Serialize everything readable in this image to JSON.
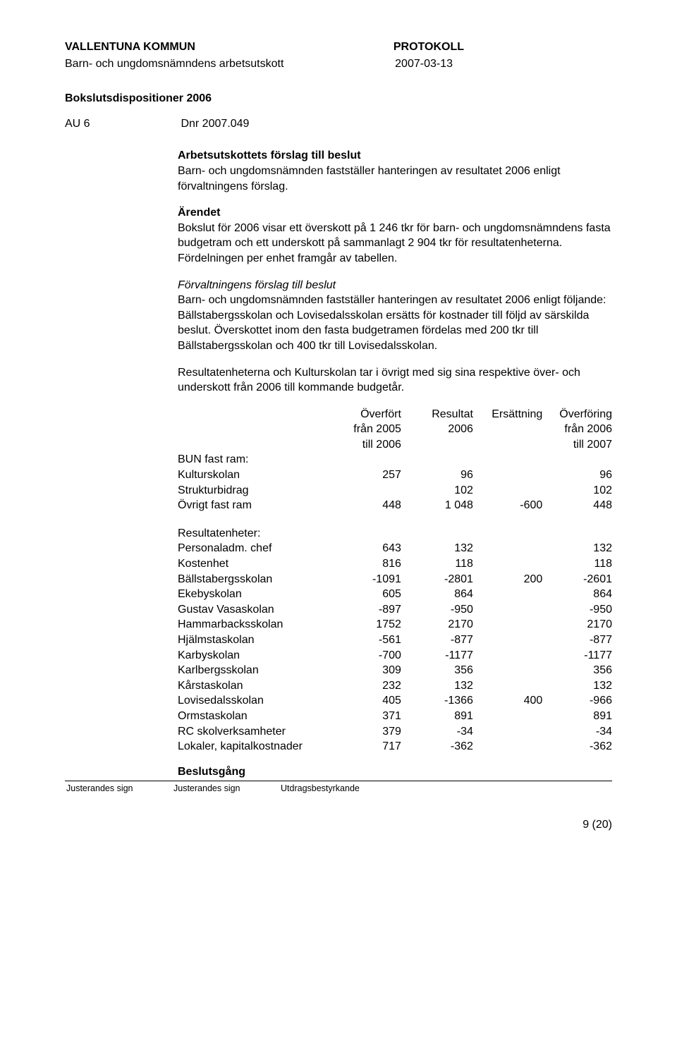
{
  "header": {
    "org": "VALLENTUNA KOMMUN",
    "doc_type": "PROTOKOLL",
    "committee": "Barn- och ungdomsnämndens arbetsutskott",
    "date": "2007-03-13"
  },
  "section": {
    "title": "Bokslutsdispositioner 2006",
    "ref_label": "AU 6",
    "dnr": "Dnr 2007.049"
  },
  "blocks": {
    "h1": "Arbetsutskottets förslag till beslut",
    "p1": "Barn- och ungdomsnämnden fastställer hanteringen av resultatet 2006 enligt förvaltningens förslag.",
    "h2": "Ärendet",
    "p2": "Bokslut för 2006 visar ett överskott på 1 246 tkr för barn- och ungdomsnämndens fasta budgetram och ett underskott på sammanlagt 2 904 tkr för resultatenheterna. Fördelningen per enhet framgår av tabellen.",
    "h3": "Förvaltningens förslag till beslut",
    "p3": "Barn- och ungdomsnämnden fastställer hanteringen av resultatet 2006 enligt följande:",
    "p4": "Bällstabergsskolan och Lovisedalsskolan ersätts för kostnader till följd av särskilda beslut. Överskottet inom den fasta budgetramen fördelas med 200 tkr till Bällstabergsskolan och 400 tkr till Lovisedalsskolan.",
    "p5": "Resultatenheterna och Kulturskolan tar i övrigt med sig sina respektive över- och underskott från 2006 till kommande budgetår."
  },
  "table": {
    "head": {
      "c1a": "Överfört",
      "c1b": "från 2005",
      "c1c": "till 2006",
      "c2a": "Resultat",
      "c2b": "2006",
      "c3a": "Ersättning",
      "c4a": "Överföring",
      "c4b": "från 2006",
      "c4c": "till 2007"
    },
    "group1_label": "BUN fast ram:",
    "group1": [
      {
        "label": "Kulturskolan",
        "a": "257",
        "b": "96",
        "c": "",
        "d": "96"
      },
      {
        "label": "Strukturbidrag",
        "a": "",
        "b": "102",
        "c": "",
        "d": "102"
      },
      {
        "label": "Övrigt fast ram",
        "a": "448",
        "b": "1 048",
        "c": "-600",
        "d": "448"
      }
    ],
    "group2_label": "Resultatenheter:",
    "group2": [
      {
        "label": "Personaladm. chef",
        "a": "643",
        "b": "132",
        "c": "",
        "d": "132"
      },
      {
        "label": "Kostenhet",
        "a": "816",
        "b": "118",
        "c": "",
        "d": "118"
      },
      {
        "label": "Bällstabergsskolan",
        "a": "-1091",
        "b": "-2801",
        "c": "200",
        "d": "-2601"
      },
      {
        "label": "Ekebyskolan",
        "a": "605",
        "b": "864",
        "c": "",
        "d": "864"
      },
      {
        "label": "Gustav Vasaskolan",
        "a": "-897",
        "b": "-950",
        "c": "",
        "d": "-950"
      },
      {
        "label": "Hammarbacksskolan",
        "a": "1752",
        "b": "2170",
        "c": "",
        "d": "2170"
      },
      {
        "label": "Hjälmstaskolan",
        "a": "-561",
        "b": "-877",
        "c": "",
        "d": "-877"
      },
      {
        "label": "Karbyskolan",
        "a": "-700",
        "b": "-1177",
        "c": "",
        "d": "-1177"
      },
      {
        "label": "Karlbergsskolan",
        "a": "309",
        "b": "356",
        "c": "",
        "d": "356"
      },
      {
        "label": "Kårstaskolan",
        "a": "232",
        "b": "132",
        "c": "",
        "d": "132"
      },
      {
        "label": "Lovisedalsskolan",
        "a": "405",
        "b": "-1366",
        "c": "400",
        "d": "-966"
      },
      {
        "label": "Ormstaskolan",
        "a": "371",
        "b": "891",
        "c": "",
        "d": "891"
      },
      {
        "label": "RC skolverksamheter",
        "a": "379",
        "b": "-34",
        "c": "",
        "d": "-34"
      },
      {
        "label": "Lokaler, kapitalkostnader",
        "a": "717",
        "b": "-362",
        "c": "",
        "d": "-362"
      }
    ]
  },
  "footer": {
    "decision": "Beslutsgång",
    "sig1": "Justerandes sign",
    "sig2": "Justerandes sign",
    "sig3": "Utdragsbestyrkande",
    "page": "9 (20)"
  }
}
